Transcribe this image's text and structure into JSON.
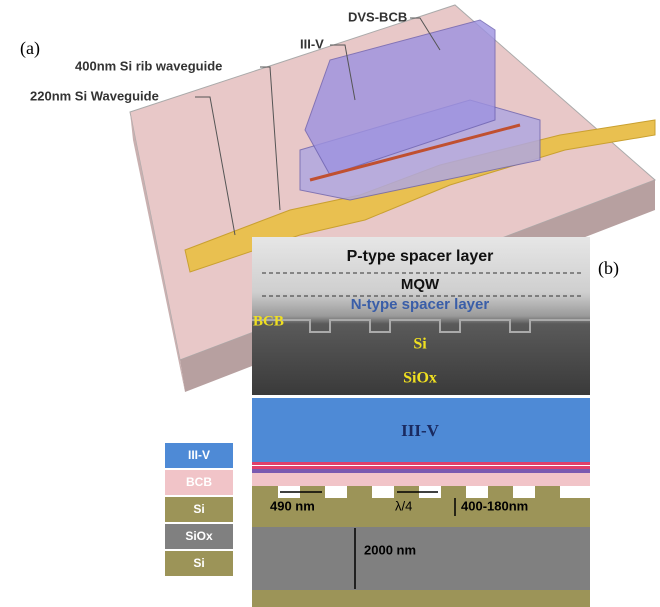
{
  "panel_a": {
    "label": "(a)",
    "callouts": [
      "DVS-BCB",
      "III-V",
      "400nm Si rib waveguide",
      "220nm Si Waveguide"
    ]
  },
  "sem": {
    "p_type": "P-type spacer layer",
    "mqw": "MQW",
    "n_type": "N-type spacer layer",
    "bcb": "BCB",
    "si": "Si",
    "siox": "SiOx"
  },
  "panel_b": {
    "label": "(b)",
    "iii_v": "III-V",
    "period": "490 nm",
    "quarter": "λ/4",
    "etch": "400-180nm",
    "box": "2000 nm"
  },
  "legend": [
    "III-V",
    "BCB",
    "Si",
    "SiOx",
    "Si"
  ]
}
